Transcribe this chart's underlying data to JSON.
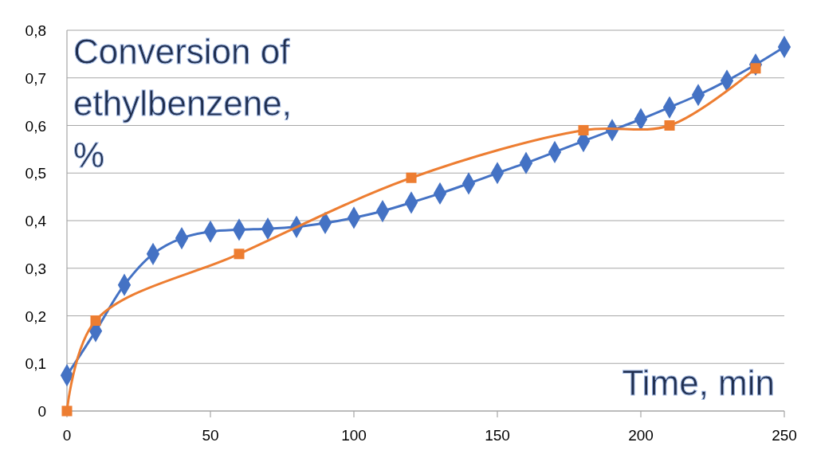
{
  "chart_data": {
    "type": "line",
    "xlabel": "Time, min",
    "ylabel": "Conversion of ethylbenzene, %",
    "xlim": [
      0,
      250
    ],
    "xticks": [
      0,
      50,
      100,
      150,
      200,
      250
    ],
    "ylim": [
      0,
      0.8
    ],
    "yticks": [
      0,
      {
        "value": 0.1,
        "label": "0,1"
      },
      {
        "value": 0.2,
        "label": "0,2"
      },
      {
        "value": 0.3,
        "label": "0,3"
      },
      {
        "value": 0.4,
        "label": "0,4"
      },
      {
        "value": 0.5,
        "label": "0,5"
      },
      {
        "value": 0.6,
        "label": "0,6"
      },
      {
        "value": 0.7,
        "label": "0,7"
      },
      {
        "value": 0.8,
        "label": "0,8"
      }
    ],
    "grid": "y",
    "line_style": "solid",
    "series": [
      {
        "color": "#4472c4",
        "marker": "diamond",
        "x": [
          0,
          10,
          20,
          30,
          40,
          50,
          60,
          70,
          80,
          90,
          100,
          110,
          120,
          130,
          140,
          150,
          160,
          170,
          180,
          190,
          200,
          210,
          220,
          230,
          240,
          250
        ],
        "values": [
          0.075,
          0.168,
          0.265,
          0.33,
          0.363,
          0.377,
          0.381,
          0.383,
          0.387,
          0.395,
          0.406,
          0.42,
          0.438,
          0.457,
          0.478,
          0.5,
          0.521,
          0.544,
          0.567,
          0.59,
          0.613,
          0.638,
          0.664,
          0.694,
          0.728,
          0.765
        ]
      },
      {
        "color": "#ed7d31",
        "marker": "square",
        "x": [
          0,
          10,
          60,
          120,
          180,
          210,
          240
        ],
        "values": [
          0,
          0.19,
          0.33,
          0.49,
          0.59,
          0.6,
          0.72
        ]
      }
    ]
  }
}
